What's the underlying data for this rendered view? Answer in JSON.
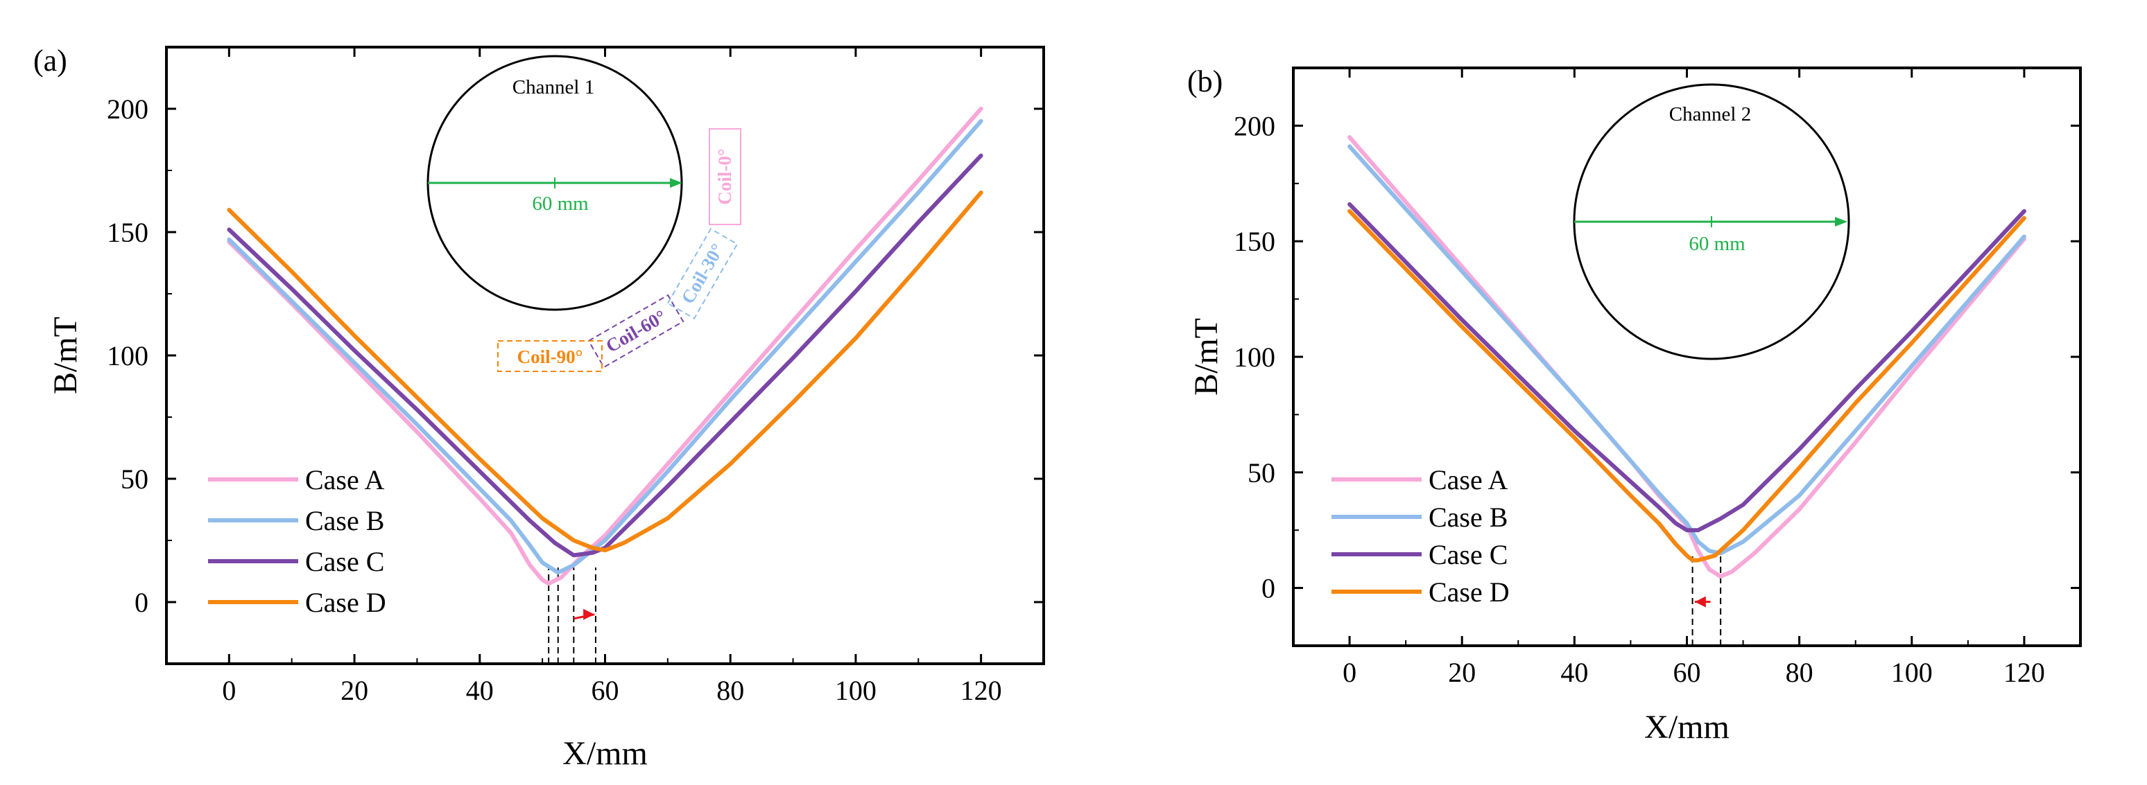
{
  "figure": {
    "panel_a_label": "(a)",
    "panel_b_label": "(b)"
  },
  "colors": {
    "case_a": "#F7A8D8",
    "case_b": "#8FBCEB",
    "case_c": "#7A46A6",
    "case_d": "#F5870F",
    "dimension_arrow": "#1FB24A",
    "shift_arrow": "#E8141B",
    "axis": "#000000"
  },
  "chart_data": [
    {
      "type": "line",
      "panel": "(a)",
      "xlabel": "X/mm",
      "ylabel": "B/mT",
      "xlim": [
        -10,
        130
      ],
      "ylim": [
        -25,
        225
      ],
      "xticks": [
        0,
        20,
        40,
        60,
        80,
        100,
        120
      ],
      "yticks": [
        0,
        50,
        100,
        150,
        200
      ],
      "legend": "bottom-left",
      "series": [
        {
          "name": "Case A",
          "color": "#F7A8D8",
          "points": [
            [
              0,
              146
            ],
            [
              10,
              121
            ],
            [
              20,
              95
            ],
            [
              30,
              69
            ],
            [
              40,
              42
            ],
            [
              45,
              28
            ],
            [
              48,
              15
            ],
            [
              50,
              9
            ],
            [
              51,
              7.5
            ],
            [
              53,
              10
            ],
            [
              56,
              18
            ],
            [
              60,
              27
            ],
            [
              70,
              56
            ],
            [
              80,
              85
            ],
            [
              90,
              114
            ],
            [
              100,
              143
            ],
            [
              110,
              171
            ],
            [
              120,
              200
            ]
          ]
        },
        {
          "name": "Case B",
          "color": "#8FBCEB",
          "points": [
            [
              0,
              147
            ],
            [
              10,
              122
            ],
            [
              20,
              97
            ],
            [
              30,
              72
            ],
            [
              40,
              46
            ],
            [
              45,
              33
            ],
            [
              48,
              23
            ],
            [
              50,
              16
            ],
            [
              52.5,
              12
            ],
            [
              55,
              15
            ],
            [
              58,
              21
            ],
            [
              60,
              25
            ],
            [
              70,
              53
            ],
            [
              80,
              82
            ],
            [
              90,
              110
            ],
            [
              100,
              138
            ],
            [
              110,
              166
            ],
            [
              120,
              195
            ]
          ]
        },
        {
          "name": "Case C",
          "color": "#7A46A6",
          "points": [
            [
              0,
              151
            ],
            [
              10,
              127
            ],
            [
              20,
              102
            ],
            [
              30,
              78
            ],
            [
              40,
              53
            ],
            [
              48,
              33
            ],
            [
              52,
              24
            ],
            [
              55,
              19
            ],
            [
              58,
              20
            ],
            [
              60,
              22
            ],
            [
              70,
              47
            ],
            [
              80,
              73
            ],
            [
              90,
              99
            ],
            [
              100,
              126
            ],
            [
              110,
              154
            ],
            [
              120,
              181
            ]
          ]
        },
        {
          "name": "Case D",
          "color": "#F5870F",
          "points": [
            [
              0,
              159
            ],
            [
              10,
              134
            ],
            [
              20,
              108
            ],
            [
              30,
              83
            ],
            [
              40,
              58
            ],
            [
              50,
              34
            ],
            [
              55,
              25
            ],
            [
              58,
              22
            ],
            [
              60,
              21
            ],
            [
              63,
              24
            ],
            [
              70,
              34
            ],
            [
              80,
              56
            ],
            [
              90,
              81
            ],
            [
              100,
              107
            ],
            [
              110,
              136
            ],
            [
              120,
              166
            ]
          ]
        }
      ],
      "markers": [
        51,
        52.5,
        55,
        58.5
      ],
      "inset": {
        "title": "Channel 1",
        "dimension": "60 mm",
        "coil_labels": [
          "Coil-0°",
          "Coil-30°",
          "Coil-60°",
          "Coil-90°"
        ]
      }
    },
    {
      "type": "line",
      "panel": "(b)",
      "xlabel": "X/mm",
      "ylabel": "B/mT",
      "xlim": [
        -10,
        130
      ],
      "ylim": [
        -25,
        225
      ],
      "xticks": [
        0,
        20,
        40,
        60,
        80,
        100,
        120
      ],
      "yticks": [
        0,
        50,
        100,
        150,
        200
      ],
      "legend": "bottom-left",
      "series": [
        {
          "name": "Case A",
          "color": "#F7A8D8",
          "points": [
            [
              0,
              195
            ],
            [
              10,
              167
            ],
            [
              20,
              139
            ],
            [
              30,
              111
            ],
            [
              40,
              83
            ],
            [
              50,
              55
            ],
            [
              55,
              40
            ],
            [
              60,
              27
            ],
            [
              62,
              16
            ],
            [
              64,
              8
            ],
            [
              66,
              5
            ],
            [
              68,
              7
            ],
            [
              72,
              15
            ],
            [
              80,
              34
            ],
            [
              90,
              63
            ],
            [
              100,
              93
            ],
            [
              110,
              122
            ],
            [
              120,
              151
            ]
          ]
        },
        {
          "name": "Case B",
          "color": "#8FBCEB",
          "points": [
            [
              0,
              191
            ],
            [
              10,
              164
            ],
            [
              20,
              137
            ],
            [
              30,
              110
            ],
            [
              40,
              83
            ],
            [
              50,
              55
            ],
            [
              55,
              41
            ],
            [
              60,
              28
            ],
            [
              62,
              20
            ],
            [
              64,
              16
            ],
            [
              66,
              15
            ],
            [
              70,
              20
            ],
            [
              80,
              40
            ],
            [
              90,
              68
            ],
            [
              100,
              96
            ],
            [
              110,
              124
            ],
            [
              120,
              152
            ]
          ]
        },
        {
          "name": "Case C",
          "color": "#7A46A6",
          "points": [
            [
              0,
              166
            ],
            [
              10,
              141
            ],
            [
              20,
              116
            ],
            [
              30,
              92
            ],
            [
              40,
              68
            ],
            [
              50,
              46
            ],
            [
              55,
              35
            ],
            [
              58,
              28
            ],
            [
              60,
              25
            ],
            [
              62,
              25
            ],
            [
              66,
              30
            ],
            [
              70,
              36
            ],
            [
              80,
              60
            ],
            [
              90,
              86
            ],
            [
              100,
              111
            ],
            [
              110,
              137
            ],
            [
              120,
              163
            ]
          ]
        },
        {
          "name": "Case D",
          "color": "#F5870F",
          "points": [
            [
              0,
              163
            ],
            [
              10,
              138
            ],
            [
              20,
              113
            ],
            [
              30,
              89
            ],
            [
              40,
              65
            ],
            [
              50,
              40
            ],
            [
              55,
              28
            ],
            [
              58,
              19
            ],
            [
              60,
              14
            ],
            [
              61,
              12
            ],
            [
              62,
              12
            ],
            [
              65,
              14
            ],
            [
              70,
              25
            ],
            [
              80,
              52
            ],
            [
              90,
              80
            ],
            [
              100,
              106
            ],
            [
              110,
              133
            ],
            [
              120,
              160
            ]
          ]
        }
      ],
      "markers": [
        61,
        66
      ],
      "inset": {
        "title": "Channel 2",
        "dimension": "60 mm"
      }
    }
  ]
}
